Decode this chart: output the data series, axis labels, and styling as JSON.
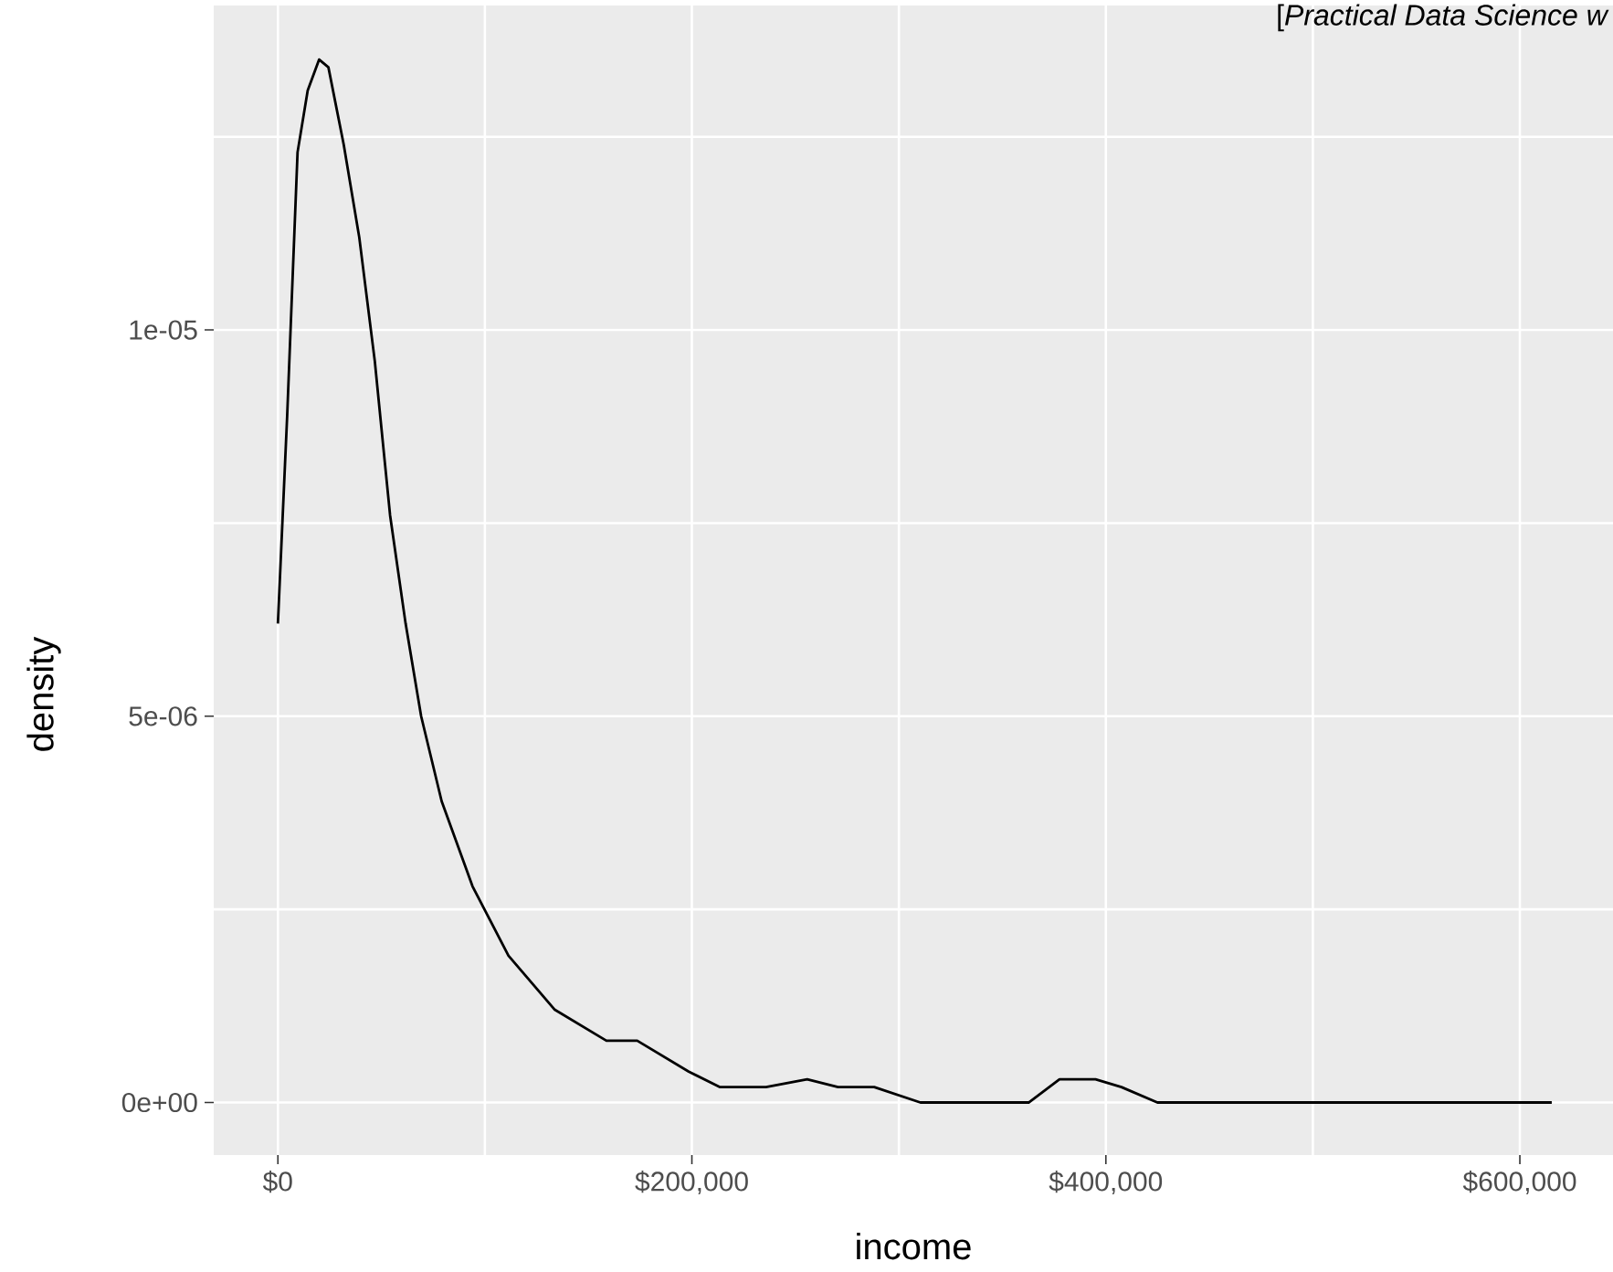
{
  "chart_data": {
    "type": "line",
    "xlabel": "income",
    "ylabel": "density",
    "annotations": [
      "[*Practical Data Science w*"
    ],
    "x": [
      0,
      4500,
      9500,
      14400,
      19900,
      24400,
      31800,
      39300,
      46800,
      54200,
      61700,
      69200,
      79100,
      94000,
      111400,
      133800,
      158700,
      173600,
      198500,
      213400,
      235800,
      255700,
      270600,
      288100,
      310400,
      342800,
      362700,
      377600,
      395000,
      407500,
      424900,
      452200,
      511900,
      599000,
      615400
    ],
    "series": [
      {
        "color": "#000000",
        "values": [
          6.2e-06,
          8.9e-06,
          1.23e-05,
          1.31e-05,
          1.35e-05,
          1.34e-05,
          1.24e-05,
          1.12e-05,
          9.6e-06,
          7.6e-06,
          6.2e-06,
          5e-06,
          3.9e-06,
          2.8e-06,
          1.9e-06,
          1.2e-06,
          8e-07,
          8e-07,
          4e-07,
          2e-07,
          2e-07,
          3e-07,
          2e-07,
          2e-07,
          0,
          0,
          0,
          3e-07,
          3e-07,
          2e-07,
          0,
          0,
          0,
          0,
          0
        ]
      }
    ],
    "xlim": [
      -31000,
      645000
    ],
    "ylim": [
      -6.8e-07,
      1.42e-05
    ],
    "xticks": [
      {
        "value": 0,
        "label": "$0"
      },
      {
        "value": 100000,
        "label": null
      },
      {
        "value": 200000,
        "label": "$200,000"
      },
      {
        "value": 300000,
        "label": null
      },
      {
        "value": 400000,
        "label": "$400,000"
      },
      {
        "value": 500000,
        "label": null
      },
      {
        "value": 600000,
        "label": "$600,000"
      }
    ],
    "yticks": [
      {
        "value": 0,
        "label": "0e+00"
      },
      {
        "value": 2.5e-06,
        "label": null
      },
      {
        "value": 5e-06,
        "label": "5e-06"
      },
      {
        "value": 7.5e-06,
        "label": null
      },
      {
        "value": 1e-05,
        "label": "1e-05"
      },
      {
        "value": 1.25e-05,
        "label": null
      }
    ],
    "grid": true
  }
}
